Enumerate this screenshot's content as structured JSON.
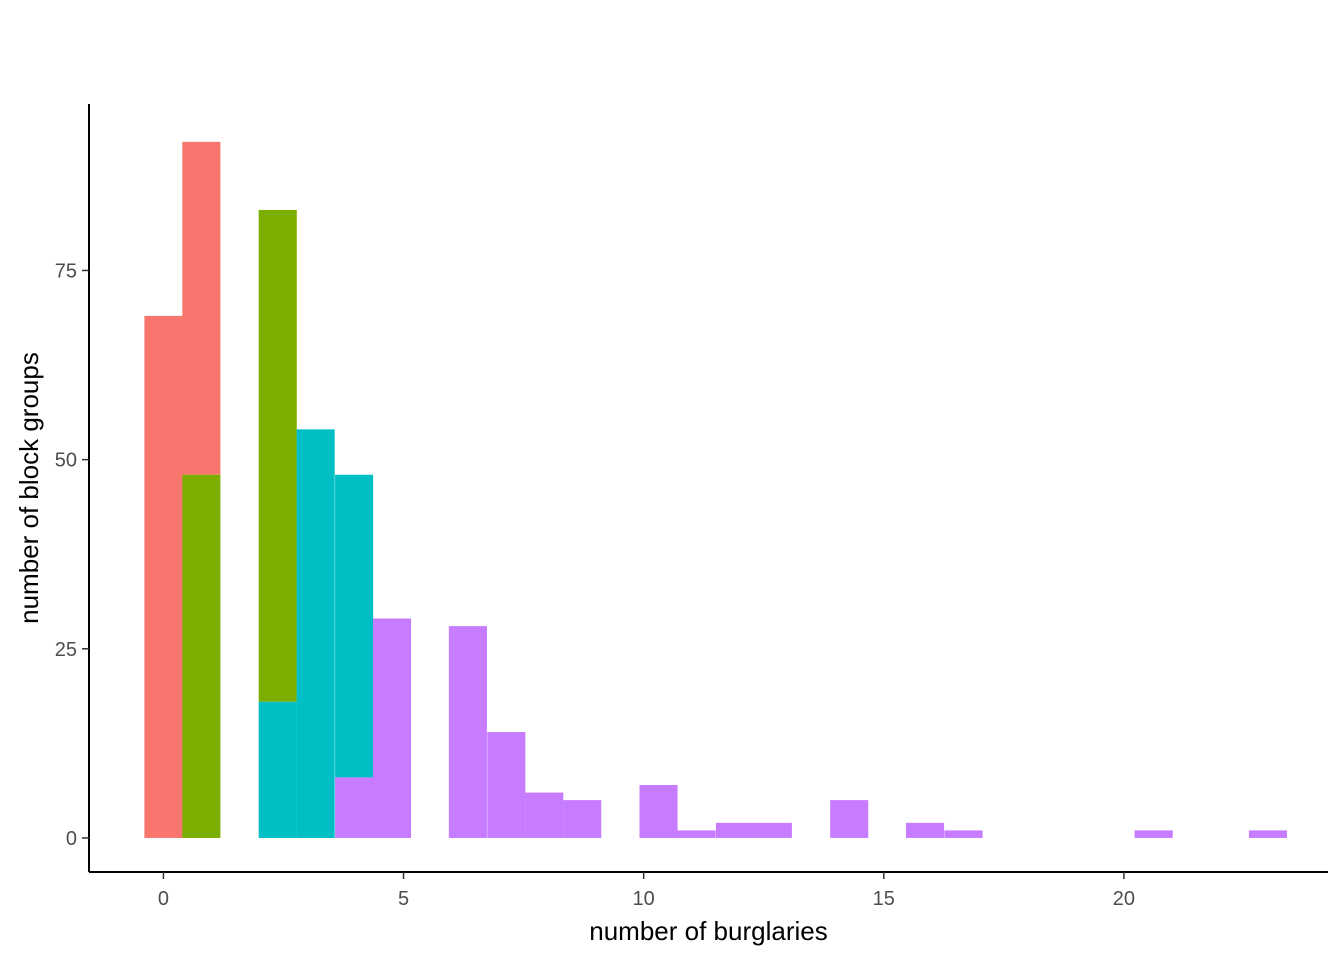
{
  "chart_data": {
    "type": "bar",
    "subtype": "stacked-histogram",
    "title": "",
    "xlabel": "number of burglaries",
    "ylabel": "number of block groups",
    "xlim": [
      -1.55,
      24.25
    ],
    "ylim": [
      -4.5,
      97
    ],
    "x_ticks": [
      0,
      5,
      10,
      15,
      20
    ],
    "y_ticks": [
      0,
      25,
      50,
      75
    ],
    "bin_width": 0.793,
    "grid": false,
    "legend": "none",
    "series": [
      {
        "color": "#F8766D",
        "bins": [
          {
            "x": 0.0,
            "bottom": 0,
            "value": 69
          },
          {
            "x": 0.79,
            "bottom": 48,
            "value": 44
          }
        ]
      },
      {
        "color": "#7CAE00",
        "bins": [
          {
            "x": 0.79,
            "bottom": 0,
            "value": 48
          },
          {
            "x": 2.38,
            "bottom": 18,
            "value": 65
          }
        ]
      },
      {
        "color": "#00BFC4",
        "bins": [
          {
            "x": 2.38,
            "bottom": 0,
            "value": 18
          },
          {
            "x": 3.17,
            "bottom": 0,
            "value": 54
          },
          {
            "x": 3.97,
            "bottom": 8,
            "value": 40
          }
        ]
      },
      {
        "color": "#C77CFF",
        "bins": [
          {
            "x": 3.97,
            "bottom": 0,
            "value": 8
          },
          {
            "x": 4.76,
            "bottom": 0,
            "value": 29
          },
          {
            "x": 6.34,
            "bottom": 0,
            "value": 28
          },
          {
            "x": 7.14,
            "bottom": 0,
            "value": 14
          },
          {
            "x": 7.93,
            "bottom": 0,
            "value": 6
          },
          {
            "x": 8.72,
            "bottom": 0,
            "value": 5
          },
          {
            "x": 10.31,
            "bottom": 0,
            "value": 7
          },
          {
            "x": 11.1,
            "bottom": 0,
            "value": 1
          },
          {
            "x": 11.9,
            "bottom": 0,
            "value": 2
          },
          {
            "x": 12.69,
            "bottom": 0,
            "value": 2
          },
          {
            "x": 14.28,
            "bottom": 0,
            "value": 5
          },
          {
            "x": 15.86,
            "bottom": 0,
            "value": 2
          },
          {
            "x": 16.66,
            "bottom": 0,
            "value": 1
          },
          {
            "x": 20.62,
            "bottom": 0,
            "value": 1
          },
          {
            "x": 23.0,
            "bottom": 0,
            "value": 1
          }
        ]
      }
    ]
  }
}
